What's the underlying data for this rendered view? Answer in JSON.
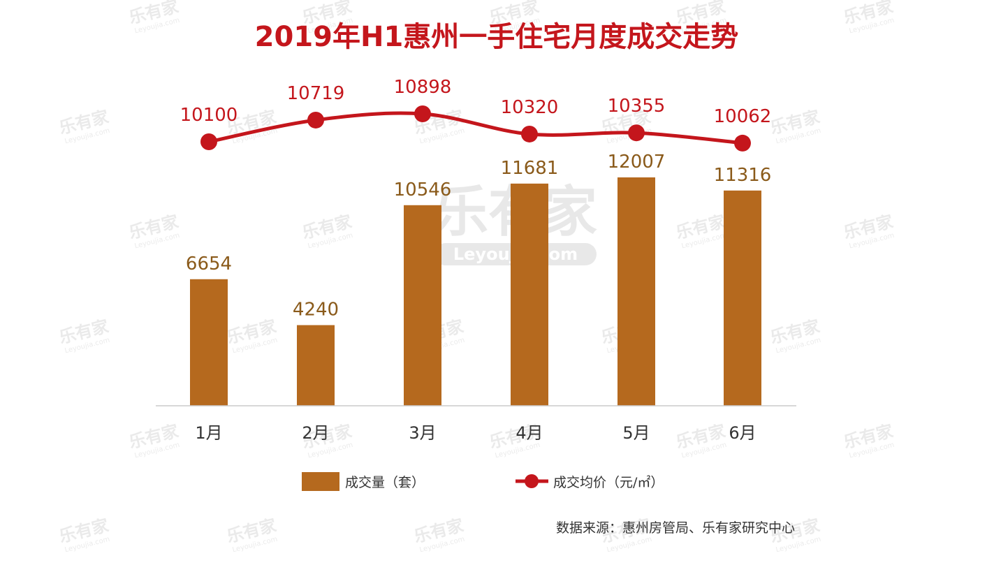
{
  "chart_data": {
    "type": "bar",
    "title": "2019年H1惠州一手住宅月度成交走势",
    "categories": [
      "1月",
      "2月",
      "3月",
      "4月",
      "5月",
      "6月"
    ],
    "series": [
      {
        "name": "成交量（套）",
        "type": "bar",
        "values": [
          6654,
          4240,
          10546,
          11681,
          12007,
          11316
        ],
        "color": "#b5691e"
      },
      {
        "name": "成交均价（元/㎡）",
        "type": "line",
        "values": [
          10100,
          10719,
          10898,
          10320,
          10355,
          10062
        ],
        "color": "#c4161c"
      }
    ],
    "source": "数据来源：惠州房管局、乐有家研究中心",
    "legend_position": "bottom",
    "grid": false
  },
  "watermark": {
    "brand": "乐有家",
    "domain": "Leyoujia.com"
  },
  "colors": {
    "title": "#c4161c",
    "bar_label": "#8a5a1a",
    "line_label": "#c4161c",
    "axis": "#cccccc"
  }
}
